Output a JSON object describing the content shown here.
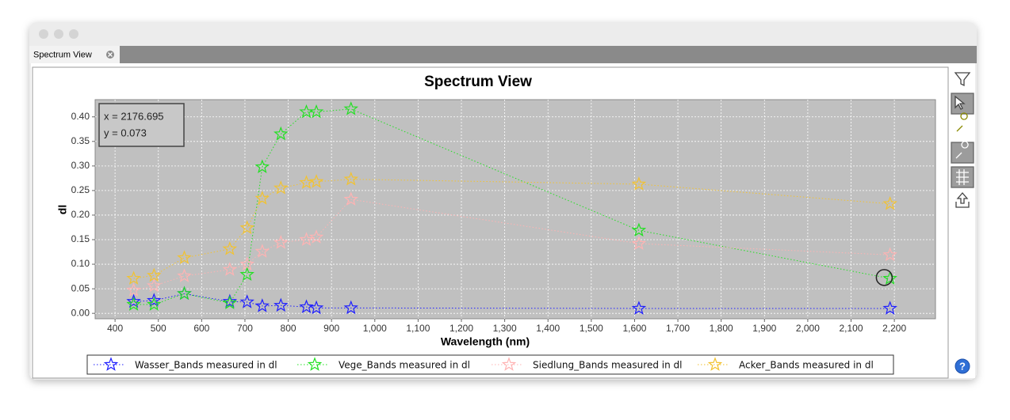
{
  "window": {
    "tab_title": "Spectrum View",
    "help": "?"
  },
  "chart_data": {
    "type": "line",
    "title": "Spectrum View",
    "x_label": "Wavelength (nm)",
    "y_label": "dl",
    "x": [
      443,
      490,
      560,
      665,
      705,
      740,
      783,
      842,
      865,
      945,
      1610,
      2190
    ],
    "series": [
      {
        "name": "Wasser_Bands measured in dl",
        "color": "#1f1fff",
        "values": [
          0.024,
          0.026,
          0.04,
          0.024,
          0.023,
          0.015,
          0.016,
          0.013,
          0.011,
          0.011,
          0.01,
          0.01
        ]
      },
      {
        "name": "Vege_Bands measured in dl",
        "color": "#22e022",
        "values": [
          0.018,
          0.018,
          0.04,
          0.021,
          0.079,
          0.298,
          0.365,
          0.41,
          0.41,
          0.416,
          0.169,
          0.071
        ]
      },
      {
        "name": "Siedlung_Bands measured in dl",
        "color": "#ffb3b3",
        "values": [
          0.047,
          0.056,
          0.076,
          0.089,
          0.1,
          0.126,
          0.144,
          0.15,
          0.155,
          0.232,
          0.142,
          0.119
        ]
      },
      {
        "name": "Acker_Bands measured in dl",
        "color": "#f2c230",
        "values": [
          0.071,
          0.077,
          0.113,
          0.131,
          0.174,
          0.234,
          0.255,
          0.266,
          0.268,
          0.273,
          0.263,
          0.223
        ]
      }
    ],
    "xlim": [
      354,
      2295
    ],
    "ylim": [
      -0.011,
      0.435
    ],
    "xticks": [
      400,
      500,
      600,
      700,
      800,
      900,
      {
        "value": 1000,
        "label": "1,000"
      },
      {
        "value": 1100,
        "label": "1,100"
      },
      {
        "value": 1200,
        "label": "1,200"
      },
      {
        "value": 1300,
        "label": "1,300"
      },
      {
        "value": 1400,
        "label": "1,400"
      },
      {
        "value": 1500,
        "label": "1,500"
      },
      {
        "value": 1600,
        "label": "1,600"
      },
      {
        "value": 1700,
        "label": "1,700"
      },
      {
        "value": 1800,
        "label": "1,800"
      },
      {
        "value": 1900,
        "label": "1,900"
      },
      {
        "value": 2000,
        "label": "2,000"
      },
      {
        "value": 2100,
        "label": "2,100"
      },
      {
        "value": 2200,
        "label": "2,200"
      }
    ],
    "yticks": [
      {
        "value": 0,
        "label": "0.00"
      },
      {
        "value": 0.05,
        "label": "0.05"
      },
      {
        "value": 0.1,
        "label": "0.10"
      },
      {
        "value": 0.15,
        "label": "0.15"
      },
      {
        "value": 0.2,
        "label": "0.20"
      },
      {
        "value": 0.25,
        "label": "0.25"
      },
      {
        "value": 0.3,
        "label": "0.30"
      },
      {
        "value": 0.35,
        "label": "0.35"
      },
      {
        "value": 0.4,
        "label": "0.40"
      }
    ],
    "grid": true,
    "legend": "bottom",
    "crosshair": {
      "x": 2176.695,
      "y": 0.073,
      "x_label": "x = 2176.695",
      "y_label": "y = 0.073"
    }
  }
}
